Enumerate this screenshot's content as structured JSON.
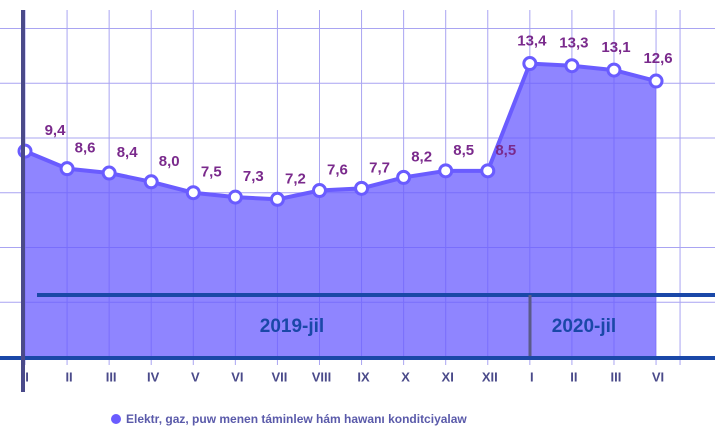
{
  "chart_data": {
    "type": "area",
    "annotations": [
      "2019-jil",
      "2020-jil"
    ],
    "categories": [
      "I",
      "II",
      "III",
      "IV",
      "V",
      "VI",
      "VII",
      "VIII",
      "IX",
      "X",
      "XI",
      "XII",
      "I",
      "II",
      "III",
      "VI"
    ],
    "series": [
      {
        "name": "Elektr, gaz, puw menen táminlew hám hawanı konditciyalaw",
        "color": "#6a5cff",
        "values": [
          9.4,
          8.6,
          8.4,
          8.0,
          7.5,
          7.3,
          7.2,
          7.6,
          7.7,
          8.2,
          8.5,
          8.5,
          13.4,
          13.3,
          13.1,
          12.6
        ],
        "value_labels": [
          "9,4",
          "8,6",
          "8,4",
          "8,0",
          "7,5",
          "7,3",
          "7,2",
          "7,6",
          "7,7",
          "8,2",
          "8,5",
          "8,5",
          "13,4",
          "13,3",
          "13,1",
          "12,6"
        ]
      }
    ],
    "ylim": [
      0,
      16.3
    ],
    "yticks": [
      0,
      2.5,
      5,
      7.5,
      10,
      12.5,
      15
    ],
    "grid": true
  }
}
